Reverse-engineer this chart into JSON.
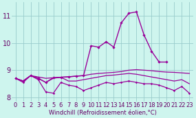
{
  "xlabel": "Windchill (Refroidissement éolien,°C)",
  "x": [
    0,
    1,
    2,
    3,
    4,
    5,
    6,
    7,
    8,
    9,
    10,
    11,
    12,
    13,
    14,
    15,
    16,
    17,
    18,
    19,
    20,
    21,
    22,
    23
  ],
  "line_smooth": [
    8.7,
    8.6,
    8.8,
    8.75,
    8.7,
    8.72,
    8.74,
    8.76,
    8.78,
    8.8,
    8.85,
    8.88,
    8.9,
    8.92,
    8.95,
    9.0,
    9.02,
    9.0,
    8.98,
    8.95,
    8.93,
    8.92,
    8.9,
    8.88
  ],
  "line_jagged": [
    8.7,
    8.55,
    8.8,
    8.65,
    8.2,
    8.15,
    8.55,
    8.45,
    8.4,
    8.25,
    8.35,
    8.45,
    8.55,
    8.5,
    8.55,
    8.6,
    8.55,
    8.5,
    8.5,
    8.45,
    8.35,
    8.25,
    8.4,
    8.15
  ],
  "line_peak": [
    8.7,
    8.6,
    8.8,
    8.7,
    8.55,
    8.72,
    8.74,
    8.75,
    8.78,
    8.8,
    9.9,
    9.85,
    10.05,
    9.85,
    10.75,
    11.1,
    11.15,
    10.3,
    9.7,
    9.3,
    9.3,
    null,
    null,
    null
  ],
  "line_mid": [
    8.7,
    8.6,
    8.8,
    8.7,
    8.55,
    8.7,
    8.74,
    8.6,
    8.6,
    8.65,
    8.7,
    8.75,
    8.8,
    8.82,
    8.85,
    8.88,
    8.85,
    8.8,
    8.75,
    8.7,
    8.65,
    8.6,
    8.65,
    8.5
  ],
  "bg_color": "#cef5ee",
  "grid_color": "#99cccc",
  "line_color": "#990099",
  "ylim": [
    7.85,
    11.5
  ],
  "yticks": [
    8,
    9,
    10,
    11
  ],
  "xlim": [
    -0.5,
    23.5
  ],
  "font_color": "#660066",
  "xlabel_fontsize": 6,
  "tick_fontsize": 6
}
